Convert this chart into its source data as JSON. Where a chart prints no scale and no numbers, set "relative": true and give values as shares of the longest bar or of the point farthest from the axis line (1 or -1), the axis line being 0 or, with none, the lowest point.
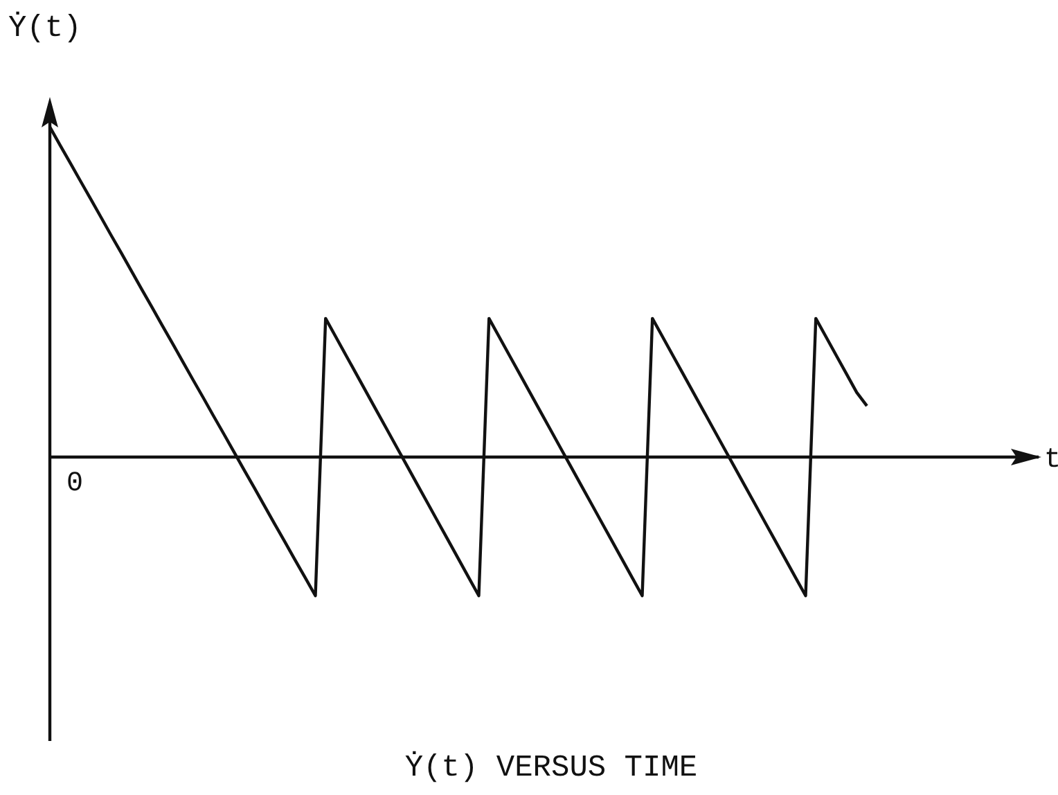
{
  "chart_data": {
    "type": "line",
    "title": "Ẏ(t) VERSUS TIME",
    "ylabel": "Ẏ(t)",
    "relative": true,
    "categories": [
      null,
      null,
      null,
      null,
      null,
      null,
      null,
      null,
      null,
      null,
      null,
      null,
      null,
      null,
      null,
      null,
      null,
      null,
      null,
      null,
      null,
      null,
      null,
      null,
      null,
      null,
      null,
      null,
      null,
      null,
      null,
      null,
      null,
      null,
      null,
      null,
      null,
      null,
      null,
      null,
      null,
      null,
      null,
      null,
      null,
      null,
      null,
      null,
      null,
      null,
      null,
      null,
      null,
      null,
      null,
      null,
      null,
      null,
      null,
      null,
      null,
      null,
      null,
      null,
      null,
      null,
      null,
      null,
      null,
      null,
      null,
      null,
      null,
      null,
      null,
      null,
      null,
      null,
      null,
      null,
      null
    ],
    "values": [
      1,
      0.945,
      0.891,
      0.836,
      0.782,
      0.727,
      0.672,
      0.618,
      0.563,
      0.508,
      0.454,
      0.399,
      0.345,
      0.29,
      0.235,
      0.181,
      0.126,
      0.072,
      0.017,
      -0.038,
      -0.092,
      -0.147,
      -0.202,
      -0.256,
      -0.311,
      -0.365,
      -0.42,
      0.42,
      0.364,
      0.308,
      0.252,
      0.196,
      0.14,
      0.084,
      0.028,
      -0.028,
      -0.084,
      -0.14,
      -0.196,
      -0.252,
      -0.308,
      -0.364,
      -0.42,
      0.42,
      0.364,
      0.308,
      0.252,
      0.196,
      0.14,
      0.084,
      0.028,
      -0.028,
      -0.084,
      -0.14,
      -0.196,
      -0.252,
      -0.308,
      -0.364,
      -0.42,
      0.42,
      0.364,
      0.308,
      0.252,
      0.196,
      0.14,
      0.084,
      0.028,
      -0.028,
      -0.084,
      -0.14,
      -0.196,
      -0.252,
      -0.308,
      -0.364,
      -0.42,
      0.42,
      0.364,
      0.308,
      0.252,
      0.196,
      0.155
    ],
    "annotations": [
      "0",
      "t"
    ],
    "color": "#111111",
    "marker": "none",
    "line_style": "solid"
  }
}
